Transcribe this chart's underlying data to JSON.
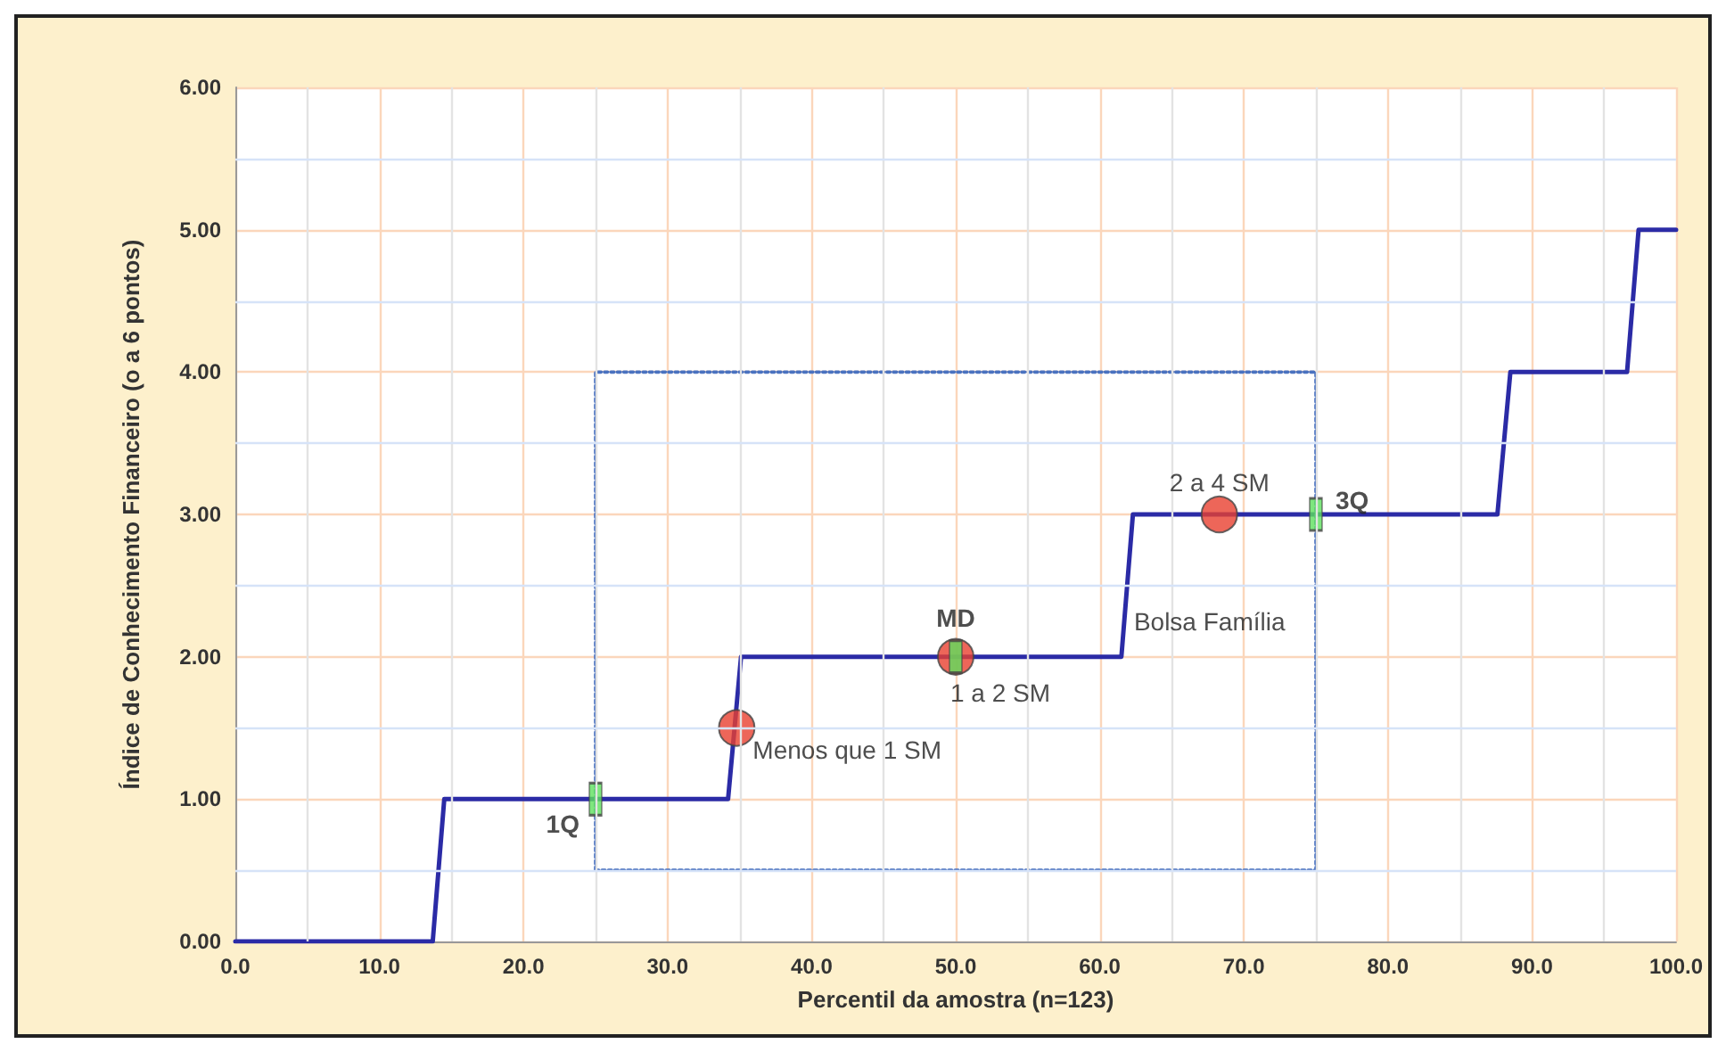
{
  "chart_data": {
    "type": "line",
    "xlabel": "Percentil da amostra (n=123)",
    "ylabel": "Índice de Conhecimento Financeiro (o a 6 pontos)",
    "xlim": [
      0,
      100
    ],
    "ylim": [
      0,
      6
    ],
    "xticks": [
      {
        "value": 0,
        "label": "0.0"
      },
      {
        "value": 5,
        "label": null
      },
      {
        "value": 10,
        "label": "10.0"
      },
      {
        "value": 15,
        "label": null
      },
      {
        "value": 20,
        "label": "20.0"
      },
      {
        "value": 25,
        "label": null
      },
      {
        "value": 30,
        "label": "30.0"
      },
      {
        "value": 35,
        "label": null
      },
      {
        "value": 40,
        "label": "40.0"
      },
      {
        "value": 45,
        "label": null
      },
      {
        "value": 50,
        "label": "50.0"
      },
      {
        "value": 55,
        "label": null
      },
      {
        "value": 60,
        "label": "60.0"
      },
      {
        "value": 65,
        "label": null
      },
      {
        "value": 70,
        "label": "70.0"
      },
      {
        "value": 75,
        "label": null
      },
      {
        "value": 80,
        "label": "80.0"
      },
      {
        "value": 85,
        "label": null
      },
      {
        "value": 90,
        "label": "90.0"
      },
      {
        "value": 95,
        "label": null
      },
      {
        "value": 100,
        "label": "100.0"
      }
    ],
    "yticks": [
      {
        "value": 0,
        "label": "0.00"
      },
      {
        "value": 0.5,
        "label": null
      },
      {
        "value": 1,
        "label": "1.00"
      },
      {
        "value": 1.5,
        "label": null
      },
      {
        "value": 2,
        "label": "2.00"
      },
      {
        "value": 2.5,
        "label": null
      },
      {
        "value": 3,
        "label": "3.00"
      },
      {
        "value": 3.5,
        "label": null
      },
      {
        "value": 4,
        "label": "4.00"
      },
      {
        "value": 4.5,
        "label": null
      },
      {
        "value": 5,
        "label": "5.00"
      },
      {
        "value": 5.5,
        "label": null
      },
      {
        "value": 6,
        "label": "6.00"
      }
    ],
    "grid": true,
    "marker": "none",
    "line_style": "solid",
    "series": [
      {
        "color": "#2b2ba6",
        "x": [
          0,
          13.7,
          14.5,
          34.2,
          35.1,
          61.5,
          62.3,
          87.6,
          88.5,
          96.6,
          97.4,
          100
        ],
        "values": [
          0,
          0,
          1,
          1,
          2,
          2,
          3,
          3,
          4,
          4,
          5,
          5
        ]
      },
      {
        "color": "#4a72c0",
        "line_style": "dotted",
        "x": [
          25,
          25,
          75,
          75
        ],
        "values": [
          0.5,
          4,
          4,
          0.5
        ]
      },
      {
        "color": "#4a72c0",
        "line_style": "dotted",
        "x": [
          25,
          75
        ],
        "values": [
          0.5,
          0.5
        ]
      },
      {
        "type": "scatter",
        "color": "#e8402f",
        "marker": "circle",
        "x": [
          34.8,
          50,
          68.3
        ],
        "values": [
          1.5,
          2,
          3
        ]
      },
      {
        "type": "scatter",
        "color": "#5ee05e",
        "marker": "square",
        "x": [
          25,
          50,
          75
        ],
        "values": [
          1,
          2,
          3
        ]
      }
    ],
    "annotations": [
      {
        "text": "1Q",
        "x": 25,
        "y": 1
      },
      {
        "text": "MD",
        "x": 50,
        "y": 2
      },
      {
        "text": "3Q",
        "x": 75,
        "y": 3
      },
      {
        "text": "Menos que 1 SM",
        "x": 34.8,
        "y": 1.5
      },
      {
        "text": "1 a 2 SM",
        "x": 50,
        "y": 2
      },
      {
        "text": "2 a 4 SM",
        "x": 68.3,
        "y": 3
      },
      {
        "text": "Bolsa Família",
        "x": 62,
        "y": 2
      }
    ]
  }
}
